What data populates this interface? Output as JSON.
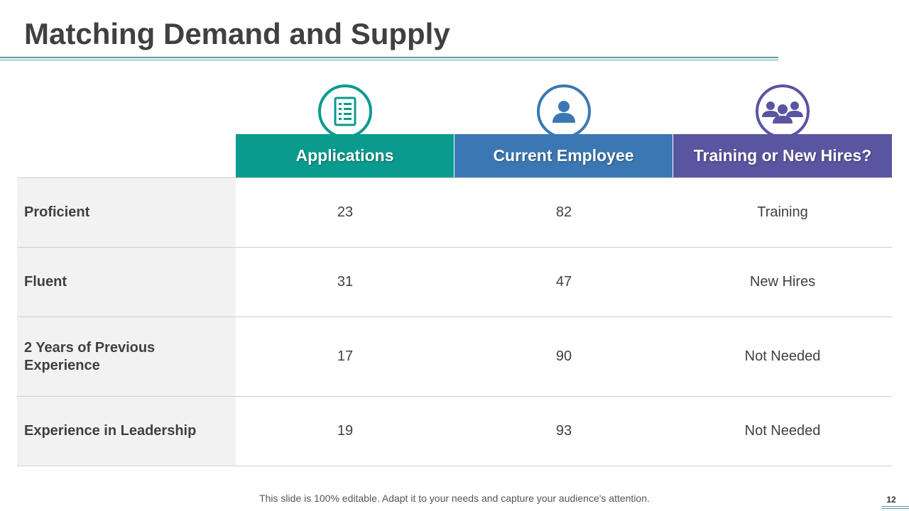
{
  "slide": {
    "title": "Matching Demand and Supply",
    "footer_note": "This slide is 100% editable. Adapt it to your needs and capture your audience's attention.",
    "page_number": "12"
  },
  "table": {
    "columns": [
      {
        "label": "Applications",
        "icon": "checklist-icon",
        "color": "#0a9b8e"
      },
      {
        "label": "Current Employee",
        "icon": "person-icon",
        "color": "#3b78b3"
      },
      {
        "label": "Training or New Hires?",
        "icon": "group-icon",
        "color": "#5a55a0"
      }
    ],
    "rows": [
      {
        "label": "Proficient",
        "cells": [
          "23",
          "82",
          "Training"
        ]
      },
      {
        "label": "Fluent",
        "cells": [
          "31",
          "47",
          "New Hires"
        ]
      },
      {
        "label": "2 Years of Previous Experience",
        "cells": [
          "17",
          "90",
          "Not Needed"
        ]
      },
      {
        "label": "Experience in Leadership",
        "cells": [
          "19",
          "93",
          "Not Needed"
        ]
      }
    ]
  }
}
